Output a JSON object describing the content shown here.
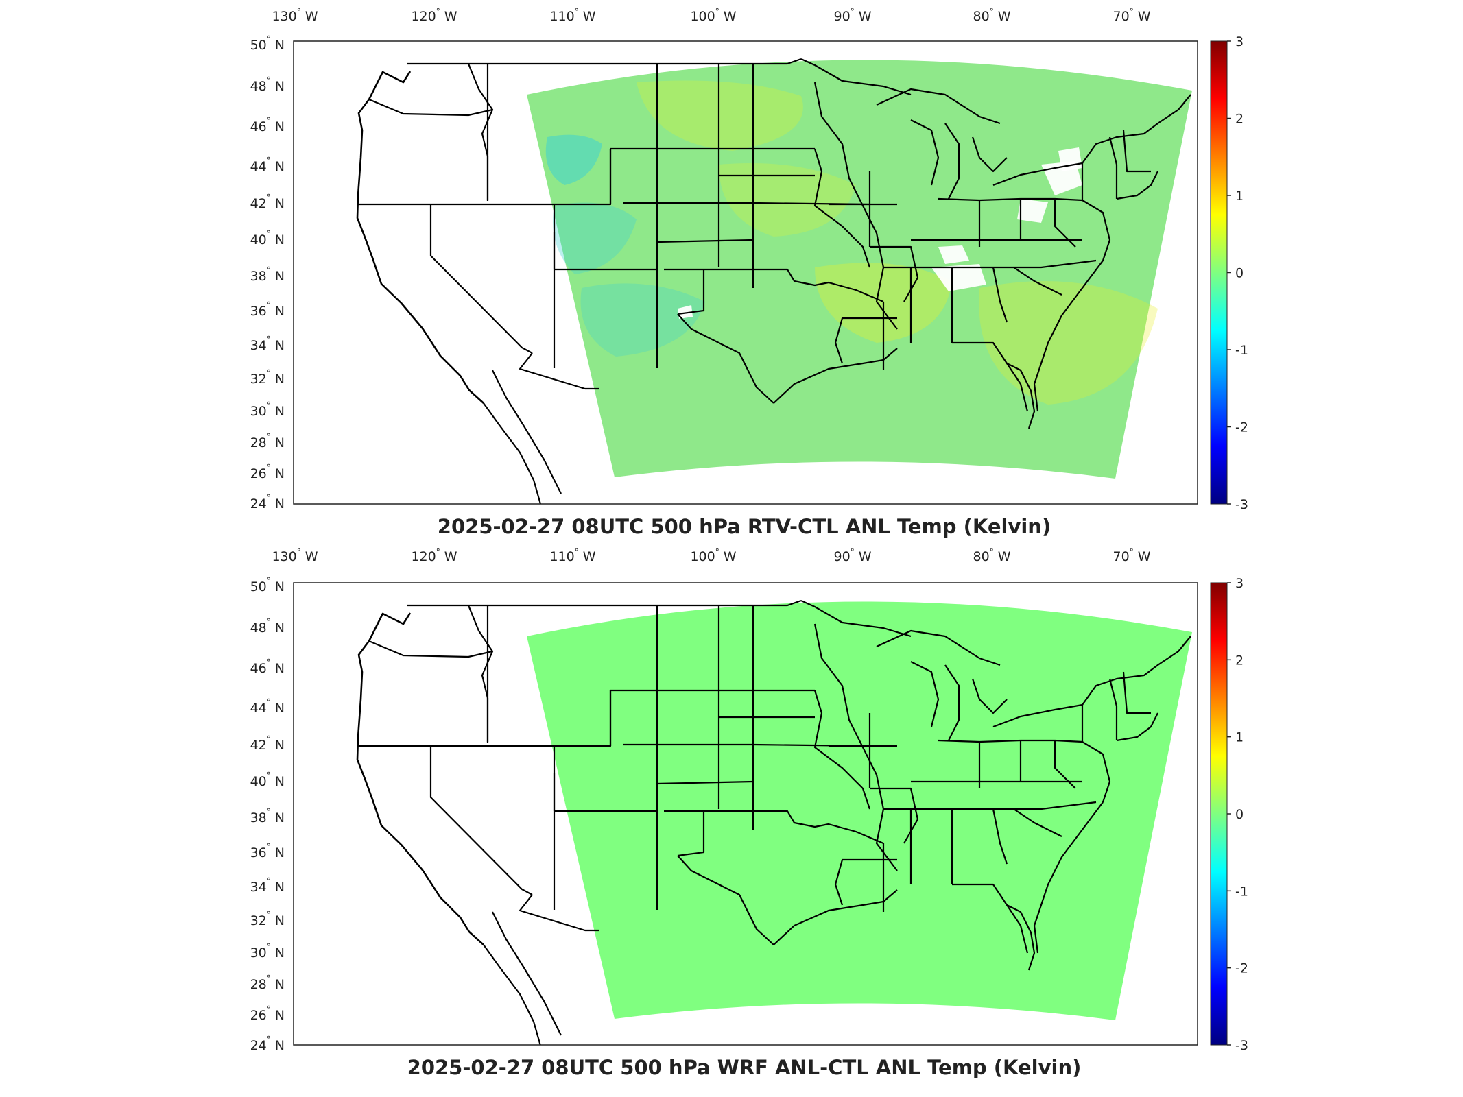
{
  "panels": [
    {
      "title": "2025-02-27 08UTC 500 hPa RTV-CTL ANL Temp (Kelvin)",
      "field": "variable",
      "base_color": "#8fe88a",
      "anomaly_colors": [
        "#3fd2d0",
        "#c6f04a",
        "#e8f028",
        "#ffffff"
      ]
    },
    {
      "title": "2025-02-27 08UTC 500 hPa WRF ANL-CTL ANL Temp (Kelvin)",
      "field": "uniform",
      "base_color": "#80ff80",
      "anomaly_colors": []
    }
  ],
  "longitude_ticks": [
    "130",
    "120",
    "110",
    "100",
    "90",
    "80",
    "70"
  ],
  "longitude_suffix": "W",
  "latitude_ticks": [
    "50",
    "48",
    "46",
    "44",
    "42",
    "40",
    "38",
    "36",
    "34",
    "32",
    "30",
    "28",
    "26",
    "24"
  ],
  "latitude_suffix": "N",
  "colorbar": {
    "ticks": [
      "3",
      "2",
      "1",
      "0",
      "-1",
      "-2",
      "-3"
    ],
    "colors": [
      "#800000",
      "#ff0000",
      "#ff8000",
      "#ffff00",
      "#80ff80",
      "#00ffff",
      "#0080ff",
      "#0000ff",
      "#000080"
    ]
  }
}
